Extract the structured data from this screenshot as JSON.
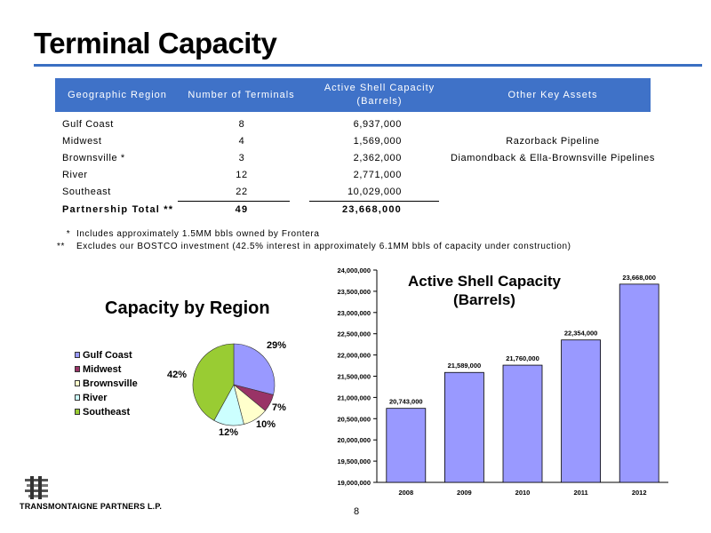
{
  "page_title": "Terminal Capacity",
  "table": {
    "headers": {
      "region": "Geographic Region",
      "terminals": "Number of Terminals",
      "capacity_line1": "Active Shell Capacity",
      "capacity_line2": "(Barrels)",
      "assets": "Other Key Assets"
    },
    "rows": [
      {
        "region": "Gulf Coast",
        "terminals": "8",
        "capacity": "6,937,000",
        "assets": ""
      },
      {
        "region": "Midwest",
        "terminals": "4",
        "capacity": "1,569,000",
        "assets": "Razorback Pipeline"
      },
      {
        "region": "Brownsville  *",
        "terminals": "3",
        "capacity": "2,362,000",
        "assets": "Diamondback & Ella-Brownsville Pipelines"
      },
      {
        "region": "River",
        "terminals": "12",
        "capacity": "2,771,000",
        "assets": ""
      },
      {
        "region": "Southeast",
        "terminals": "22",
        "capacity": "10,029,000",
        "assets": ""
      }
    ],
    "total": {
      "label": "Partnership Total  **",
      "terminals": "49",
      "capacity": "23,668,000"
    }
  },
  "footnotes": {
    "note1_marker": "*",
    "note1": "Includes approximately 1.5MM bbls owned by Frontera",
    "note2_marker": "**",
    "note2": "Excludes our BOSTCO investment (42.5% interest in approximately 6.1MM bbls of capacity under construction)"
  },
  "chart_data": [
    {
      "type": "pie",
      "title": "Capacity by Region",
      "legend_position": "left",
      "categories": [
        "Gulf Coast",
        "Midwest",
        "Brownsville",
        "River",
        "Southeast"
      ],
      "values": [
        29,
        7,
        10,
        12,
        42
      ],
      "labels": [
        "29%",
        "7%",
        "10%",
        "12%",
        "42%"
      ],
      "colors": [
        "#9999ff",
        "#993366",
        "#ffffcc",
        "#ccffff",
        "#99cc33"
      ]
    },
    {
      "type": "bar",
      "title_line1": "Active Shell Capacity",
      "title_line2": "(Barrels)",
      "categories": [
        "2008",
        "2009",
        "2010",
        "2011",
        "2012"
      ],
      "values": [
        20743000,
        21589000,
        21760000,
        22354000,
        23668000
      ],
      "value_labels": [
        "20,743,000",
        "21,589,000",
        "21,760,000",
        "22,354,000",
        "23,668,000"
      ],
      "ylim": [
        19000000,
        24000000
      ],
      "yticks": [
        19000000,
        19500000,
        20000000,
        20500000,
        21000000,
        21500000,
        22000000,
        22500000,
        23000000,
        23500000,
        24000000
      ],
      "ytick_labels": [
        "19,000,000",
        "19,500,000",
        "20,000,000",
        "20,500,000",
        "21,000,000",
        "21,500,000",
        "22,000,000",
        "22,500,000",
        "23,000,000",
        "23,500,000",
        "24,000,000"
      ],
      "grid": false,
      "bar_color": "#9999ff"
    }
  ],
  "footer": {
    "company": "TRANSMONTAIGNE PARTNERS L.P.",
    "page_number": "8"
  }
}
